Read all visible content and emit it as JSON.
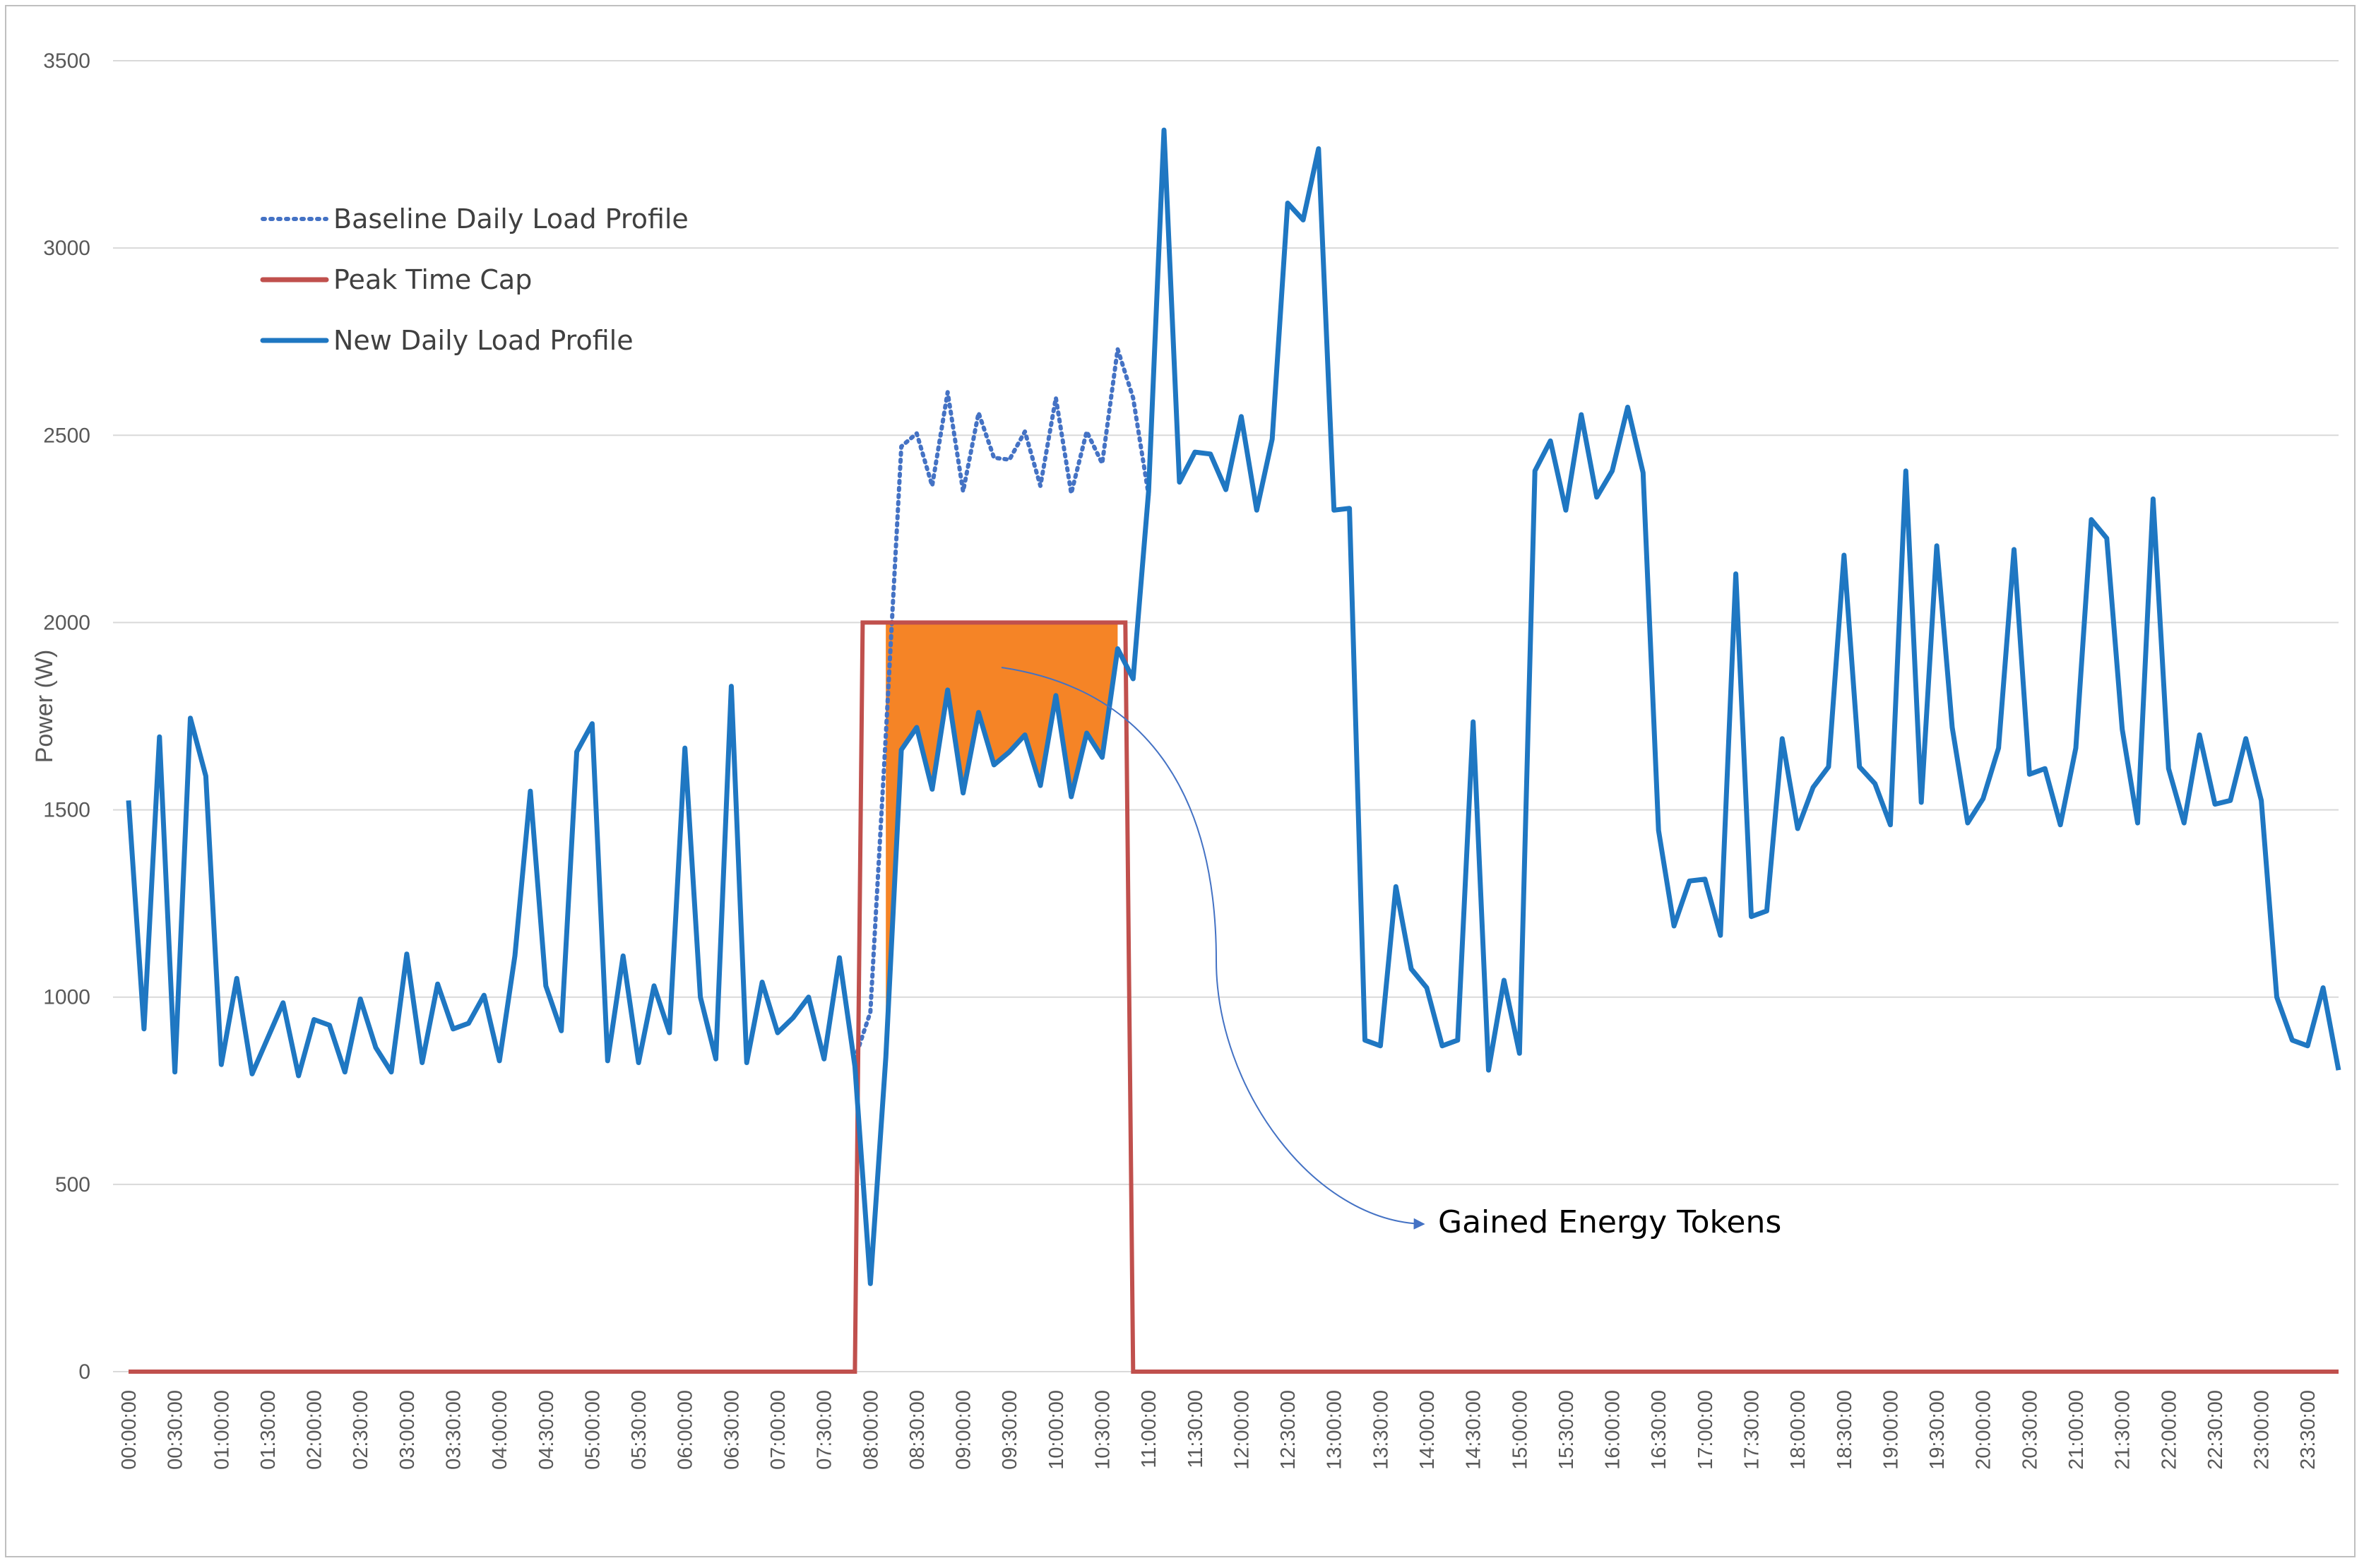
{
  "chart_data": {
    "type": "line",
    "title": "",
    "xlabel": "",
    "ylabel": "Power (W)",
    "ylim": [
      0,
      3500
    ],
    "yticks": [
      0,
      500,
      1000,
      1500,
      2000,
      2500,
      3000,
      3500
    ],
    "grid": true,
    "legend_position": "top-left",
    "x_tick_labels": [
      "00:00:00",
      "00:30:00",
      "01:00:00",
      "01:30:00",
      "02:00:00",
      "02:30:00",
      "03:00:00",
      "03:30:00",
      "04:00:00",
      "04:30:00",
      "05:00:00",
      "05:30:00",
      "06:00:00",
      "06:30:00",
      "07:00:00",
      "07:30:00",
      "08:00:00",
      "08:30:00",
      "09:00:00",
      "09:30:00",
      "10:00:00",
      "10:30:00",
      "11:00:00",
      "11:30:00",
      "12:00:00",
      "12:30:00",
      "13:00:00",
      "13:30:00",
      "14:00:00",
      "14:30:00",
      "15:00:00",
      "15:30:00",
      "16:00:00",
      "16:30:00",
      "17:00:00",
      "17:30:00",
      "18:00:00",
      "18:30:00",
      "19:00:00",
      "19:30:00",
      "20:00:00",
      "20:30:00",
      "21:00:00",
      "21:30:00",
      "22:00:00",
      "22:30:00",
      "23:00:00",
      "23:30:00"
    ],
    "x_interval_minutes": 10,
    "colors": {
      "baseline": "#4472c4",
      "cap": "#c0504d",
      "new": "#1f77c2",
      "tokens_fill": "#f58426",
      "arrow": "#4472c4",
      "grid": "#d9d9d9",
      "frame": "#bfbfbf"
    },
    "series": [
      {
        "name": "New Daily Load Profile",
        "style": "solid",
        "values": [
          1525,
          915,
          1695,
          800,
          1745,
          1590,
          820,
          1050,
          795,
          890,
          985,
          790,
          940,
          925,
          800,
          995,
          865,
          800,
          1115,
          825,
          1035,
          915,
          930,
          1005,
          830,
          1110,
          1550,
          1030,
          910,
          1655,
          1730,
          830,
          1110,
          825,
          1030,
          905,
          1665,
          1000,
          835,
          1830,
          825,
          1040,
          905,
          945,
          1000,
          835,
          1105,
          815,
          235,
          840,
          1660,
          1720,
          1555,
          1820,
          1545,
          1760,
          1620,
          1655,
          1700,
          1565,
          1805,
          1535,
          1705,
          1640,
          1930,
          1850,
          2350,
          3315,
          2375,
          2455,
          2450,
          2355,
          2550,
          2300,
          2490,
          3120,
          3075,
          3265,
          2300,
          2305,
          885,
          870,
          1295,
          1075,
          1025,
          870,
          885,
          1735,
          805,
          1045,
          850,
          2405,
          2485,
          2300,
          2555,
          2335,
          2405,
          2575,
          2400,
          1445,
          1190,
          1310,
          1315,
          1165,
          2130,
          1215,
          1230,
          1690,
          1450,
          1560,
          1615,
          2180,
          1615,
          1570,
          1460,
          2405,
          1520,
          2205,
          1720,
          1465,
          1530,
          1665,
          2195,
          1595,
          1610,
          1460,
          1665,
          2275,
          2225,
          1715,
          1465,
          2330,
          1610,
          1465,
          1700,
          1515,
          1525,
          1690,
          1525,
          1000,
          885,
          870,
          1025,
          805
        ]
      },
      {
        "name": "Baseline Daily Load Profile",
        "style": "dotted",
        "start_index": 47,
        "values": [
          835,
          960,
          1700,
          2470,
          2505,
          2365,
          2615,
          2350,
          2560,
          2440,
          2435,
          2510,
          2365,
          2600,
          2345,
          2510,
          2425,
          2730,
          2600,
          2340
        ]
      },
      {
        "name": "Peak Time Cap",
        "style": "solid",
        "points": [
          [
            0,
            0
          ],
          [
            47,
            0
          ],
          [
            47.5,
            2000
          ],
          [
            64.5,
            2000
          ],
          [
            65,
            0
          ],
          [
            143,
            0
          ]
        ]
      }
    ],
    "legend": [
      "Baseline Daily Load Profile",
      "Peak Time Cap",
      "New Daily Load Profile"
    ],
    "annotations": [
      {
        "text": "Gained Energy Tokens",
        "area_from_index": 49,
        "area_to_index": 64,
        "area_top_value": 2000
      }
    ]
  }
}
